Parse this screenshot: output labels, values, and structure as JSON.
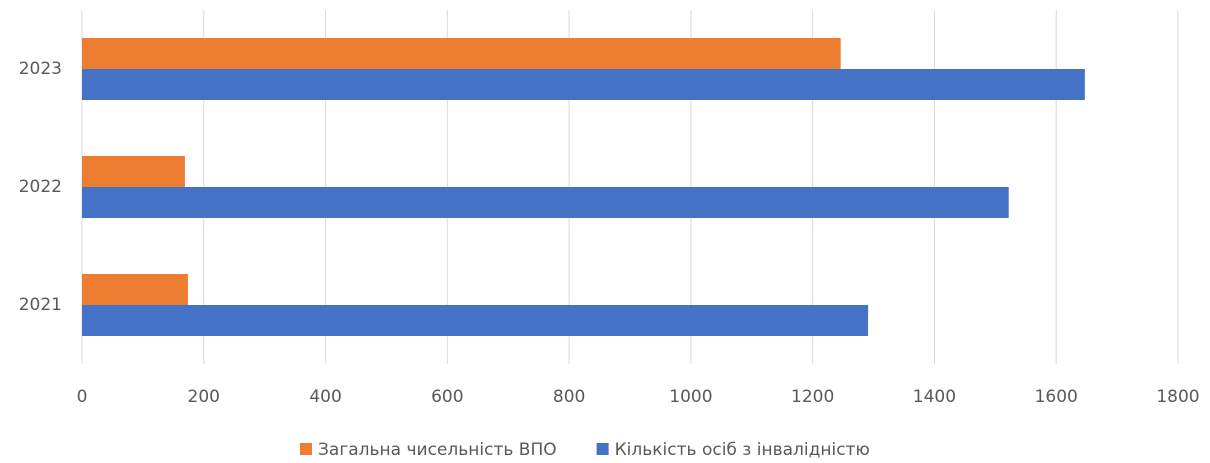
{
  "chart_data": {
    "type": "hbar",
    "categories": [
      "2021",
      "2022",
      "2023"
    ],
    "series": [
      {
        "name": "Загальна чисельність ВПО",
        "color": "#ed7d31",
        "values": [
          174,
          169,
          1246
        ]
      },
      {
        "name": "Кількість осіб з інвалідністю",
        "color": "#4472c4",
        "values": [
          1291,
          1522,
          1647
        ]
      }
    ],
    "xlim": [
      0,
      1800
    ],
    "xticks": [
      0,
      200,
      400,
      600,
      800,
      1000,
      1200,
      1400,
      1600,
      1800
    ],
    "grid": true,
    "legend": "bottom"
  }
}
